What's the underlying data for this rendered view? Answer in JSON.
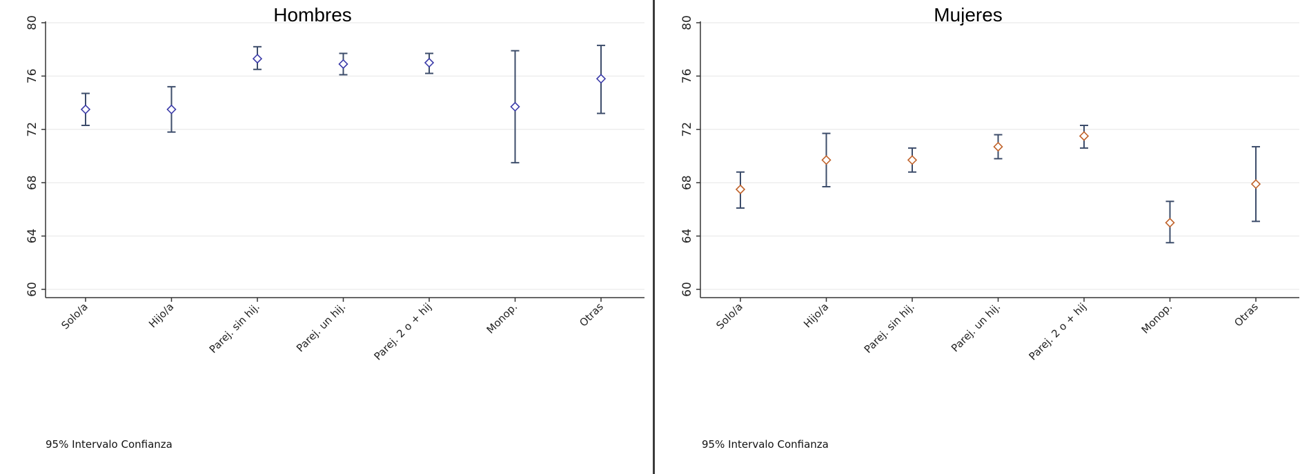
{
  "chart_data": [
    {
      "type": "scatter",
      "title": "Hombres",
      "categories": [
        "Solo/a",
        "Hijo/a",
        "Parej. sin hij.",
        "Parej. un hij.",
        "Parej. 2 o + hij",
        "Monop.",
        "Otras"
      ],
      "y_ticks": [
        "60",
        "64",
        "68",
        "72",
        "76",
        "80"
      ],
      "ylim": [
        60,
        80
      ],
      "grid": true,
      "marker": "diamond",
      "marker_color": "#3a3aa8",
      "errorbar_color": "#3c4c6a",
      "values": [
        73.5,
        73.5,
        77.3,
        76.9,
        77.0,
        73.7,
        75.8
      ],
      "ci_low": [
        72.3,
        71.8,
        76.5,
        76.1,
        76.2,
        69.5,
        73.2
      ],
      "ci_high": [
        74.7,
        75.2,
        78.2,
        77.7,
        77.7,
        77.9,
        78.3
      ],
      "note": "95% Intervalo Confianza"
    },
    {
      "type": "scatter",
      "title": "Mujeres",
      "categories": [
        "Solo/a",
        "Hijo/a",
        "Parej. sin hij.",
        "Parej. un hij.",
        "Parej. 2 o + hij",
        "Monop.",
        "Otras"
      ],
      "y_ticks": [
        "60",
        "64",
        "68",
        "72",
        "76",
        "80"
      ],
      "ylim": [
        60,
        80
      ],
      "grid": true,
      "marker": "diamond",
      "marker_color": "#c0622a",
      "errorbar_color": "#3c4c6a",
      "values": [
        67.5,
        69.7,
        69.7,
        70.7,
        71.5,
        65.0,
        67.9
      ],
      "ci_low": [
        66.1,
        67.7,
        68.8,
        69.8,
        70.6,
        63.5,
        65.1
      ],
      "ci_high": [
        68.8,
        71.7,
        70.6,
        71.6,
        72.3,
        66.6,
        70.7
      ],
      "note": "95% Intervalo Confianza"
    }
  ]
}
